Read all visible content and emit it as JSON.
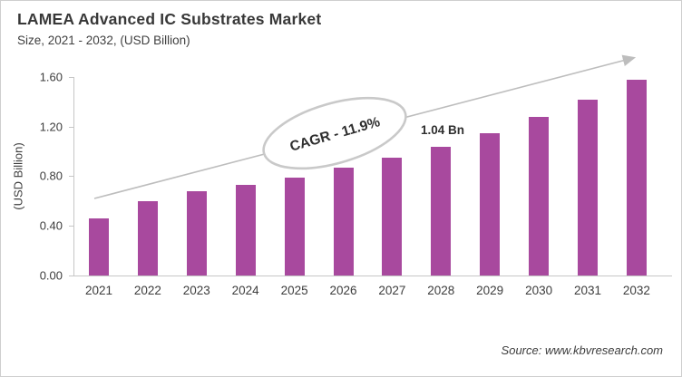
{
  "header": {
    "title": "LAMEA Advanced IC Substrates Market",
    "subtitle": "Size, 2021 - 2032, (USD Billion)"
  },
  "chart_data": {
    "type": "bar",
    "title": "LAMEA Advanced IC Substrates Market Size, 2021 - 2032, (USD Billion)",
    "categories": [
      "2021",
      "2022",
      "2023",
      "2024",
      "2025",
      "2026",
      "2027",
      "2028",
      "2029",
      "2030",
      "2031",
      "2032"
    ],
    "values": [
      0.46,
      0.6,
      0.68,
      0.73,
      0.79,
      0.87,
      0.95,
      1.04,
      1.15,
      1.28,
      1.42,
      1.58
    ],
    "xlabel": "",
    "ylabel": "(USD Billion)",
    "ylim": [
      0,
      1.6
    ],
    "ytick_labels": [
      "0.00",
      "0.40",
      "0.80",
      "1.20",
      "1.60"
    ],
    "ytick_values": [
      0,
      0.4,
      0.8,
      1.2,
      1.6
    ],
    "grid": false,
    "legend": null,
    "bar_color": "#a8499e",
    "trend_arrow": true,
    "annotations": [
      {
        "kind": "ellipse-callout",
        "text": "CAGR - 11.9%"
      },
      {
        "kind": "data-label",
        "text": "1.04 Bn",
        "target_category": "2028",
        "target_value": 1.04
      }
    ]
  },
  "annotations": {
    "cagr": "CAGR - 11.9%",
    "value_label": "1.04 Bn"
  },
  "footer": {
    "source": "Source: www.kbvresearch.com"
  },
  "colors": {
    "bar": "#a8499e",
    "axis": "#c6c6c6",
    "arrow": "#bdbdbd",
    "ellipse_stroke": "#c9c9c9",
    "text": "#3d3d3d"
  }
}
